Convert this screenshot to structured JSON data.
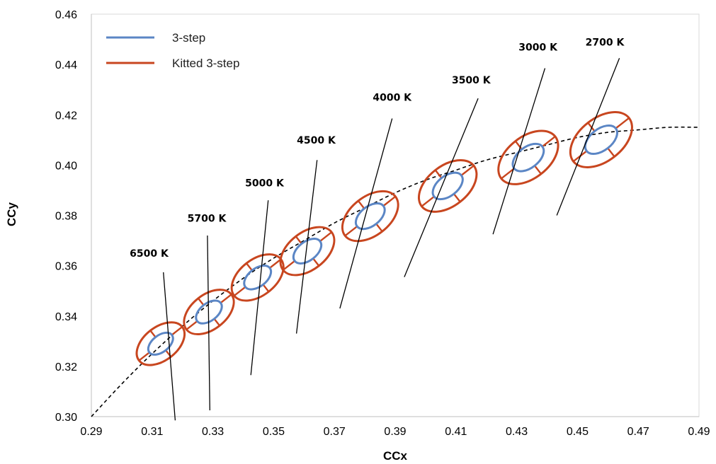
{
  "chart_data": {
    "type": "scatter",
    "xlabel": "CCx",
    "ylabel": "CCy",
    "xlim": [
      0.29,
      0.49
    ],
    "ylim": [
      0.3,
      0.46
    ],
    "x_ticks": [
      "0.29",
      "0.31",
      "0.33",
      "0.35",
      "0.37",
      "0.39",
      "0.41",
      "0.43",
      "0.45",
      "0.47",
      "0.49"
    ],
    "y_ticks": [
      "0.30",
      "0.32",
      "0.34",
      "0.36",
      "0.38",
      "0.40",
      "0.42",
      "0.44",
      "0.46"
    ],
    "grid": false,
    "legend_position": "top-left",
    "series": [
      {
        "name": "3-step",
        "color": "#5b86c5"
      },
      {
        "name": "Kitted 3-step",
        "color": "#c8461f"
      }
    ],
    "curve": {
      "style": "dashed",
      "points": [
        [
          0.29,
          0.3
        ],
        [
          0.3,
          0.313
        ],
        [
          0.31,
          0.325
        ],
        [
          0.32,
          0.336
        ],
        [
          0.33,
          0.346
        ],
        [
          0.34,
          0.355
        ],
        [
          0.35,
          0.363
        ],
        [
          0.36,
          0.37
        ],
        [
          0.37,
          0.377
        ],
        [
          0.38,
          0.383
        ],
        [
          0.39,
          0.389
        ],
        [
          0.4,
          0.394
        ],
        [
          0.41,
          0.398
        ],
        [
          0.42,
          0.402
        ],
        [
          0.43,
          0.405
        ],
        [
          0.44,
          0.408
        ],
        [
          0.45,
          0.411
        ],
        [
          0.46,
          0.413
        ],
        [
          0.47,
          0.414
        ],
        [
          0.48,
          0.415
        ],
        [
          0.49,
          0.415
        ]
      ]
    },
    "bins": [
      {
        "label": "6500 K",
        "cx": 0.3128,
        "cy": 0.329,
        "label_x": 0.309,
        "label_y": 0.3635,
        "line": [
          [
            0.3137,
            0.3574
          ],
          [
            0.3176,
            0.2985
          ]
        ]
      },
      {
        "label": "5700 K",
        "cx": 0.3287,
        "cy": 0.3416,
        "label_x": 0.328,
        "label_y": 0.3775,
        "line": [
          [
            0.3282,
            0.372
          ],
          [
            0.329,
            0.3025
          ]
        ]
      },
      {
        "label": "5000 K",
        "cx": 0.3447,
        "cy": 0.3553,
        "label_x": 0.347,
        "label_y": 0.3915,
        "line": [
          [
            0.3482,
            0.386
          ],
          [
            0.3425,
            0.3165
          ]
        ]
      },
      {
        "label": "4500 K",
        "cx": 0.3611,
        "cy": 0.3658,
        "label_x": 0.364,
        "label_y": 0.4085,
        "line": [
          [
            0.3643,
            0.402
          ],
          [
            0.3575,
            0.333
          ]
        ]
      },
      {
        "label": "4000 K",
        "cx": 0.3818,
        "cy": 0.3797,
        "label_x": 0.389,
        "label_y": 0.4255,
        "line": [
          [
            0.389,
            0.4185
          ],
          [
            0.3718,
            0.343
          ]
        ]
      },
      {
        "label": "3500 K",
        "cx": 0.4073,
        "cy": 0.3917,
        "label_x": 0.415,
        "label_y": 0.4325,
        "line": [
          [
            0.4173,
            0.4265
          ],
          [
            0.393,
            0.3555
          ]
        ]
      },
      {
        "label": "3000 K",
        "cx": 0.4338,
        "cy": 0.403,
        "label_x": 0.437,
        "label_y": 0.4455,
        "line": [
          [
            0.4393,
            0.4385
          ],
          [
            0.4222,
            0.3725
          ]
        ]
      },
      {
        "label": "2700 K",
        "cx": 0.4578,
        "cy": 0.4101,
        "label_x": 0.459,
        "label_y": 0.4475,
        "line": [
          [
            0.4638,
            0.4425
          ],
          [
            0.4432,
            0.38
          ]
        ]
      }
    ]
  }
}
